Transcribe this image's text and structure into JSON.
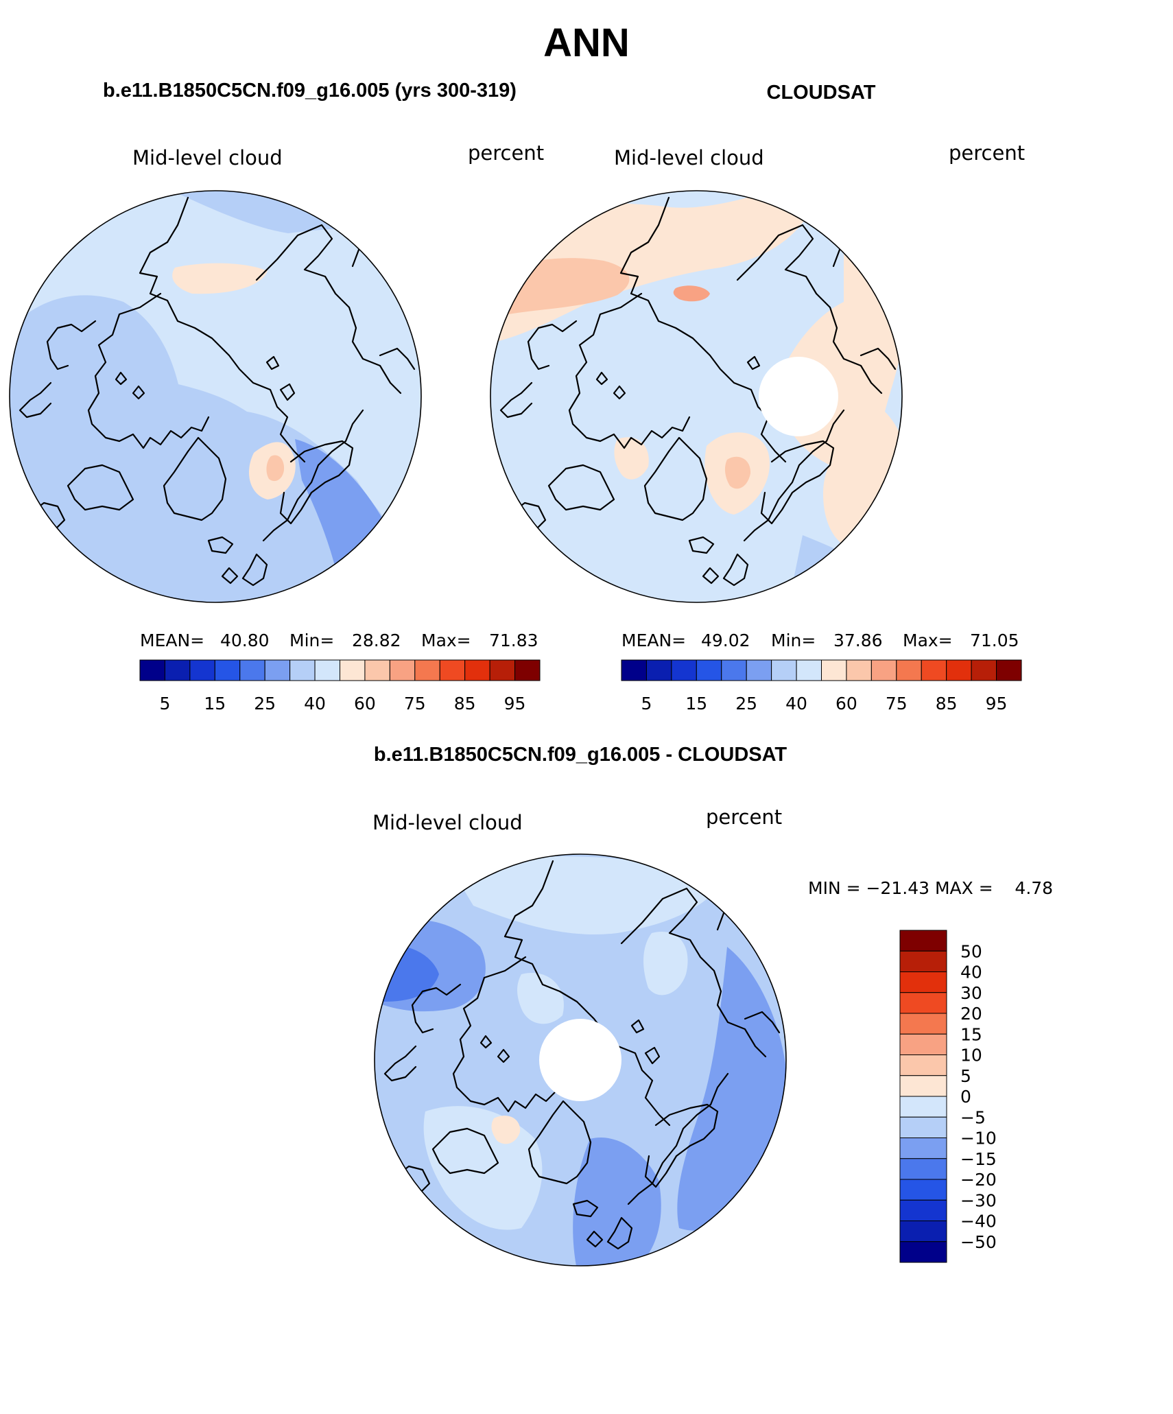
{
  "figure": {
    "title": "ANN",
    "panels": [
      {
        "id": "model",
        "heading": "b.e11.B1850C5CN.f09_g16.005 (yrs 300-319)",
        "variable": "Mid-level cloud",
        "units": "percent",
        "stats": {
          "mean_label": "MEAN=",
          "mean": "40.80",
          "min_label": "Min=",
          "min": "28.82",
          "max_label": "Max=",
          "max": "71.83"
        },
        "background_color": "#d3e6fb",
        "has_polar_hole": false
      },
      {
        "id": "obs",
        "heading": "CLOUDSAT",
        "variable": "Mid-level cloud",
        "units": "percent",
        "stats": {
          "mean_label": "MEAN=",
          "mean": "49.02",
          "min_label": "Min=",
          "min": "37.86",
          "max_label": "Max=",
          "max": "71.05"
        },
        "background_color": "#d3e6fb",
        "has_polar_hole": true
      },
      {
        "id": "diff",
        "heading": "b.e11.B1850C5CN.f09_g16.005 - CLOUDSAT",
        "variable": "Mid-level cloud",
        "units": "percent",
        "stats_text": "MIN = −21.43 MAX =    4.78",
        "background_color": "#b5cff7",
        "has_polar_hole": true
      }
    ],
    "abs_colorbar": {
      "colors": [
        "#00008a",
        "#0a1fb0",
        "#1435d0",
        "#2555e6",
        "#4b78ec",
        "#7b9ff1",
        "#b5cff7",
        "#d3e6fb",
        "#fde6d4",
        "#fbc7ab",
        "#f8a283",
        "#f4784f",
        "#ef4a22",
        "#e2300c",
        "#b71f08",
        "#7e0000"
      ],
      "tick_labels": [
        "5",
        "15",
        "25",
        "40",
        "60",
        "75",
        "85",
        "95"
      ]
    },
    "diff_colorbar": {
      "colors": [
        "#7e0000",
        "#b71f08",
        "#e2300c",
        "#ef4a22",
        "#f4784f",
        "#f8a283",
        "#fbc7ab",
        "#fde6d4",
        "#d3e6fb",
        "#b5cff7",
        "#7b9ff1",
        "#4b78ec",
        "#2555e6",
        "#1435d0",
        "#0a1fb0",
        "#00008a"
      ],
      "tick_labels": [
        "50",
        "40",
        "30",
        "20",
        "15",
        "10",
        "5",
        "0",
        "−5",
        "−10",
        "−15",
        "−20",
        "−30",
        "−40",
        "−50"
      ]
    }
  }
}
